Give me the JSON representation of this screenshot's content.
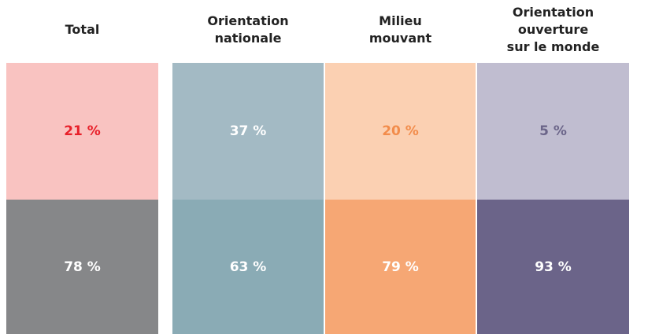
{
  "table": {
    "columns": [
      {
        "header": "Total",
        "cells": [
          "21 %",
          "78 %"
        ]
      },
      {
        "header": "Orientation\nnationale",
        "cells": [
          "37 %",
          "63 %"
        ]
      },
      {
        "header": "Milieu\nmouvant",
        "cells": [
          "20 %",
          "79 %"
        ]
      },
      {
        "header": "Orientation ouverture\nsur le monde",
        "cells": [
          "5 %",
          "93 %"
        ]
      }
    ]
  }
}
